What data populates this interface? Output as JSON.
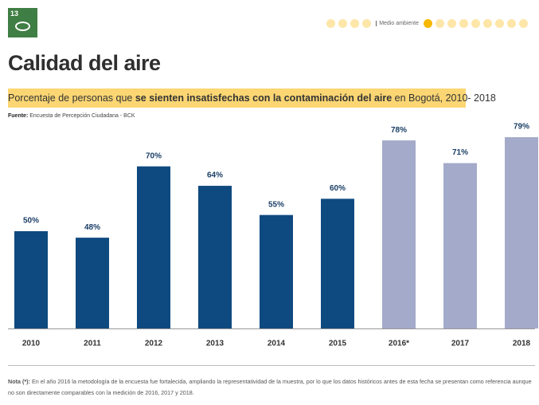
{
  "sdg_number": "13",
  "section": "Medio ambiente",
  "heading": "Calidad del aire",
  "subtitle": [
    "Porcentaje de personas que ",
    "se sienten insatisfechas con la contaminación del aire",
    " en Bogotá, 2010- 2018"
  ],
  "source": {
    "label": "Fuente:",
    "text": "Encuesta de Percepción Ciudadana - BCK"
  },
  "note": {
    "label": "Nota (*):",
    "text": "En el año 2016 la metodología de la encuesta fue fortalecida, ampliando la representatividad de la muestra, por lo que los datos históricos antes de esta fecha se presentan como referencia aunque no son directamente comparables con la medición de 2016, 2017 y 2018."
  },
  "chart_data": {
    "type": "bar",
    "categories": [
      "2010",
      "2011",
      "2012",
      "2013",
      "2014",
      "2015",
      "2016*",
      "2017",
      "2018"
    ],
    "values": [
      50,
      48,
      70,
      64,
      55,
      60,
      78,
      71,
      79
    ],
    "value_labels": [
      "50%",
      "48%",
      "70%",
      "64%",
      "55%",
      "60%",
      "78%",
      "71%",
      "79%"
    ],
    "colors": [
      "#0e4a7f",
      "#0e4a7f",
      "#0e4a7f",
      "#0e4a7f",
      "#0e4a7f",
      "#0e4a7f",
      "#a4aac9",
      "#a4aac9",
      "#a4aac9"
    ],
    "ylim": [
      20,
      80
    ]
  }
}
